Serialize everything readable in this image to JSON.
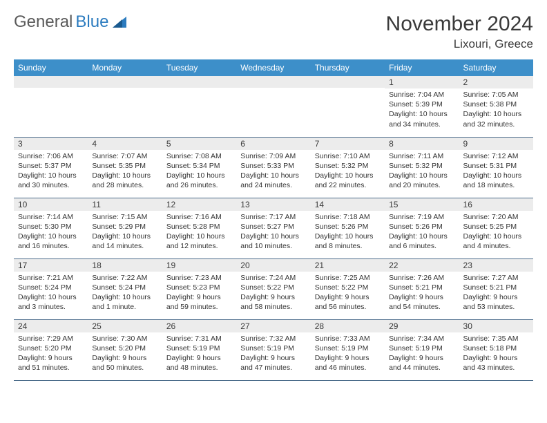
{
  "brand": {
    "part1": "General",
    "part2": "Blue"
  },
  "title": "November 2024",
  "location": "Lixouri, Greece",
  "colors": {
    "header_bg": "#3d8fc9",
    "header_text": "#ffffff",
    "daynum_bg": "#ececec",
    "row_divider": "#4a6b8a",
    "brand_gray": "#5a5a5a",
    "brand_blue": "#2b7bbf",
    "text": "#333333",
    "background": "#ffffff"
  },
  "day_names": [
    "Sunday",
    "Monday",
    "Tuesday",
    "Wednesday",
    "Thursday",
    "Friday",
    "Saturday"
  ],
  "weeks": [
    [
      {
        "n": "",
        "sr": "",
        "ss": "",
        "dl": ""
      },
      {
        "n": "",
        "sr": "",
        "ss": "",
        "dl": ""
      },
      {
        "n": "",
        "sr": "",
        "ss": "",
        "dl": ""
      },
      {
        "n": "",
        "sr": "",
        "ss": "",
        "dl": ""
      },
      {
        "n": "",
        "sr": "",
        "ss": "",
        "dl": ""
      },
      {
        "n": "1",
        "sr": "Sunrise: 7:04 AM",
        "ss": "Sunset: 5:39 PM",
        "dl": "Daylight: 10 hours and 34 minutes."
      },
      {
        "n": "2",
        "sr": "Sunrise: 7:05 AM",
        "ss": "Sunset: 5:38 PM",
        "dl": "Daylight: 10 hours and 32 minutes."
      }
    ],
    [
      {
        "n": "3",
        "sr": "Sunrise: 7:06 AM",
        "ss": "Sunset: 5:37 PM",
        "dl": "Daylight: 10 hours and 30 minutes."
      },
      {
        "n": "4",
        "sr": "Sunrise: 7:07 AM",
        "ss": "Sunset: 5:35 PM",
        "dl": "Daylight: 10 hours and 28 minutes."
      },
      {
        "n": "5",
        "sr": "Sunrise: 7:08 AM",
        "ss": "Sunset: 5:34 PM",
        "dl": "Daylight: 10 hours and 26 minutes."
      },
      {
        "n": "6",
        "sr": "Sunrise: 7:09 AM",
        "ss": "Sunset: 5:33 PM",
        "dl": "Daylight: 10 hours and 24 minutes."
      },
      {
        "n": "7",
        "sr": "Sunrise: 7:10 AM",
        "ss": "Sunset: 5:32 PM",
        "dl": "Daylight: 10 hours and 22 minutes."
      },
      {
        "n": "8",
        "sr": "Sunrise: 7:11 AM",
        "ss": "Sunset: 5:32 PM",
        "dl": "Daylight: 10 hours and 20 minutes."
      },
      {
        "n": "9",
        "sr": "Sunrise: 7:12 AM",
        "ss": "Sunset: 5:31 PM",
        "dl": "Daylight: 10 hours and 18 minutes."
      }
    ],
    [
      {
        "n": "10",
        "sr": "Sunrise: 7:14 AM",
        "ss": "Sunset: 5:30 PM",
        "dl": "Daylight: 10 hours and 16 minutes."
      },
      {
        "n": "11",
        "sr": "Sunrise: 7:15 AM",
        "ss": "Sunset: 5:29 PM",
        "dl": "Daylight: 10 hours and 14 minutes."
      },
      {
        "n": "12",
        "sr": "Sunrise: 7:16 AM",
        "ss": "Sunset: 5:28 PM",
        "dl": "Daylight: 10 hours and 12 minutes."
      },
      {
        "n": "13",
        "sr": "Sunrise: 7:17 AM",
        "ss": "Sunset: 5:27 PM",
        "dl": "Daylight: 10 hours and 10 minutes."
      },
      {
        "n": "14",
        "sr": "Sunrise: 7:18 AM",
        "ss": "Sunset: 5:26 PM",
        "dl": "Daylight: 10 hours and 8 minutes."
      },
      {
        "n": "15",
        "sr": "Sunrise: 7:19 AM",
        "ss": "Sunset: 5:26 PM",
        "dl": "Daylight: 10 hours and 6 minutes."
      },
      {
        "n": "16",
        "sr": "Sunrise: 7:20 AM",
        "ss": "Sunset: 5:25 PM",
        "dl": "Daylight: 10 hours and 4 minutes."
      }
    ],
    [
      {
        "n": "17",
        "sr": "Sunrise: 7:21 AM",
        "ss": "Sunset: 5:24 PM",
        "dl": "Daylight: 10 hours and 3 minutes."
      },
      {
        "n": "18",
        "sr": "Sunrise: 7:22 AM",
        "ss": "Sunset: 5:24 PM",
        "dl": "Daylight: 10 hours and 1 minute."
      },
      {
        "n": "19",
        "sr": "Sunrise: 7:23 AM",
        "ss": "Sunset: 5:23 PM",
        "dl": "Daylight: 9 hours and 59 minutes."
      },
      {
        "n": "20",
        "sr": "Sunrise: 7:24 AM",
        "ss": "Sunset: 5:22 PM",
        "dl": "Daylight: 9 hours and 58 minutes."
      },
      {
        "n": "21",
        "sr": "Sunrise: 7:25 AM",
        "ss": "Sunset: 5:22 PM",
        "dl": "Daylight: 9 hours and 56 minutes."
      },
      {
        "n": "22",
        "sr": "Sunrise: 7:26 AM",
        "ss": "Sunset: 5:21 PM",
        "dl": "Daylight: 9 hours and 54 minutes."
      },
      {
        "n": "23",
        "sr": "Sunrise: 7:27 AM",
        "ss": "Sunset: 5:21 PM",
        "dl": "Daylight: 9 hours and 53 minutes."
      }
    ],
    [
      {
        "n": "24",
        "sr": "Sunrise: 7:29 AM",
        "ss": "Sunset: 5:20 PM",
        "dl": "Daylight: 9 hours and 51 minutes."
      },
      {
        "n": "25",
        "sr": "Sunrise: 7:30 AM",
        "ss": "Sunset: 5:20 PM",
        "dl": "Daylight: 9 hours and 50 minutes."
      },
      {
        "n": "26",
        "sr": "Sunrise: 7:31 AM",
        "ss": "Sunset: 5:19 PM",
        "dl": "Daylight: 9 hours and 48 minutes."
      },
      {
        "n": "27",
        "sr": "Sunrise: 7:32 AM",
        "ss": "Sunset: 5:19 PM",
        "dl": "Daylight: 9 hours and 47 minutes."
      },
      {
        "n": "28",
        "sr": "Sunrise: 7:33 AM",
        "ss": "Sunset: 5:19 PM",
        "dl": "Daylight: 9 hours and 46 minutes."
      },
      {
        "n": "29",
        "sr": "Sunrise: 7:34 AM",
        "ss": "Sunset: 5:19 PM",
        "dl": "Daylight: 9 hours and 44 minutes."
      },
      {
        "n": "30",
        "sr": "Sunrise: 7:35 AM",
        "ss": "Sunset: 5:18 PM",
        "dl": "Daylight: 9 hours and 43 minutes."
      }
    ]
  ]
}
